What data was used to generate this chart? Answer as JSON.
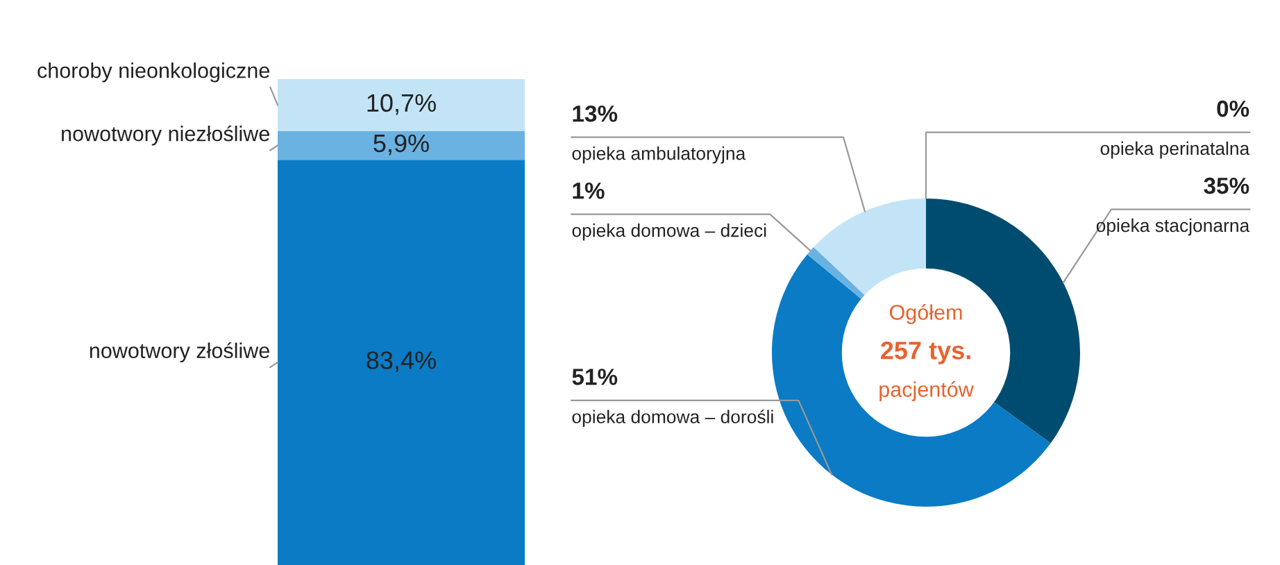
{
  "chart_data": [
    {
      "type": "bar",
      "stacked": true,
      "categories": [
        null
      ],
      "series": [
        {
          "name": "nowotwory złośliwe",
          "color": "#0a7bc4",
          "values": [
            83.4
          ],
          "value_labels": [
            "83,4%"
          ]
        },
        {
          "name": "nowotwory niezłośliwe",
          "color": "#6ab2e2",
          "values": [
            5.9
          ],
          "value_labels": [
            "5,9%"
          ]
        },
        {
          "name": "choroby nieonkologiczne",
          "color": "#c2e4f6",
          "values": [
            10.7
          ],
          "value_labels": [
            "10,7%"
          ]
        }
      ]
    },
    {
      "type": "donut",
      "categories": [
        "opieka stacjonarna",
        "opieka domowa – dorośli",
        "opieka domowa – dzieci",
        "opieka ambulatoryjna",
        "opieka perinatalna"
      ],
      "values": [
        35,
        51,
        1,
        13,
        0
      ],
      "colors": [
        "#004c70",
        "#0a7bc4",
        "#6ab2e2",
        "#c2e4f6",
        "#e0f0fa"
      ],
      "value_labels": [
        "35%",
        "51%",
        "1%",
        "13%",
        "0%"
      ],
      "annotations": [
        "Ogółem",
        "257 tys.",
        "pacjentów"
      ]
    }
  ]
}
